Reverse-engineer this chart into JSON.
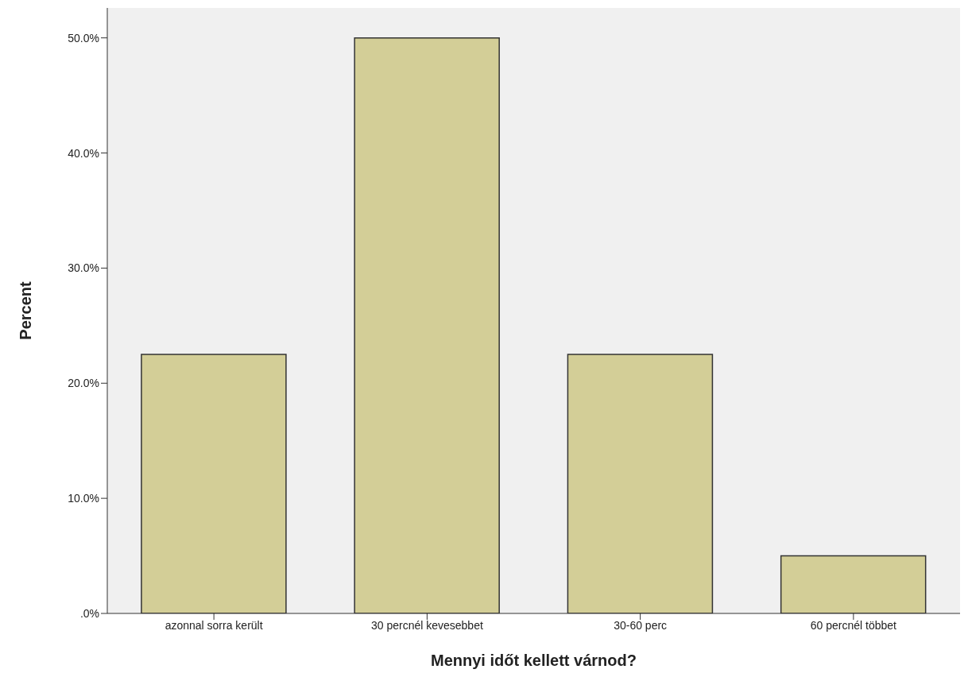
{
  "chart_data": {
    "type": "bar",
    "xlabel": "Mennyi időt kellett várnod?",
    "ylabel": "Percent",
    "categories": [
      "azonnal sorra került",
      "30 percnél kevesebbet",
      "30-60 perc",
      "60 percnél többet"
    ],
    "values": [
      22.5,
      50,
      22.5,
      5
    ],
    "color": "#d3ce97",
    "ylim": [
      0,
      52.6
    ],
    "yticks": [
      {
        "value": 0,
        "label": ".0%"
      },
      {
        "value": 10,
        "label": "10.0%"
      },
      {
        "value": 20,
        "label": "20.0%"
      },
      {
        "value": 30,
        "label": "30.0%"
      },
      {
        "value": 40,
        "label": "40.0%"
      },
      {
        "value": 50,
        "label": "50.0%"
      }
    ]
  }
}
